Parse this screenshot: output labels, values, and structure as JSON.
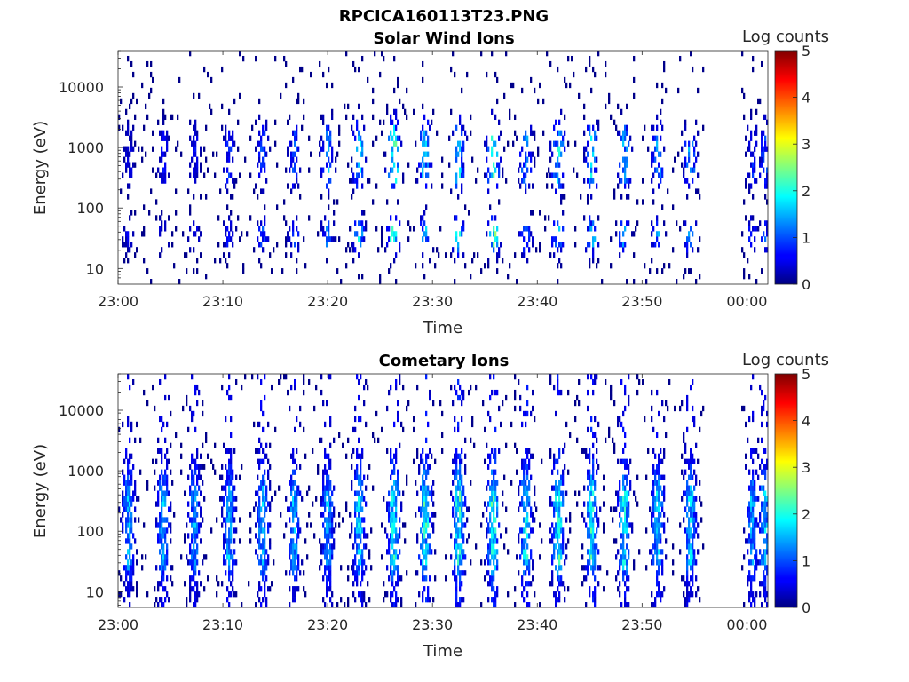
{
  "figure": {
    "title": "RPCICA160113T23.PNG"
  },
  "chart_data": [
    {
      "type": "heatmap",
      "title": "Solar Wind Ions",
      "xlabel": "Time",
      "ylabel": "Energy (eV)",
      "x_tick_labels": [
        "23:00",
        "23:10",
        "23:20",
        "23:30",
        "23:40",
        "23:50",
        "00:00"
      ],
      "x_range_minutes": [
        0,
        62
      ],
      "y_scale": "log",
      "y_range": [
        5.5,
        40000
      ],
      "y_tick_labels": [
        "10",
        "100",
        "1000",
        "10000"
      ],
      "colorbar": {
        "label": "Log counts",
        "range": [
          0,
          5
        ],
        "tick_labels": [
          "0",
          "1",
          "2",
          "3",
          "4",
          "5"
        ]
      },
      "data_gap_minutes": [
        56,
        59.5
      ],
      "sweep_centers_minutes": [
        1.0,
        4.3,
        7.3,
        10.6,
        13.8,
        16.8,
        20.0,
        23.0,
        26.3,
        29.3,
        32.5,
        35.8,
        38.9,
        42.0,
        45.2,
        48.3,
        51.5,
        54.6,
        60.5,
        61.7
      ],
      "sweep_levels_log_counts": [
        0.5,
        0.6,
        0.6,
        0.8,
        1.0,
        1.0,
        1.3,
        1.6,
        2.4,
        1.8,
        1.8,
        2.4,
        1.4,
        1.8,
        1.7,
        1.5,
        1.3,
        1.4,
        0.8,
        1.0
      ],
      "energy_band_centers_eV": [
        1000,
        400,
        35
      ],
      "style": "sparse"
    },
    {
      "type": "heatmap",
      "title": "Cometary Ions",
      "xlabel": "Time",
      "ylabel": "Energy (eV)",
      "x_tick_labels": [
        "23:00",
        "23:10",
        "23:20",
        "23:30",
        "23:40",
        "23:50",
        "00:00"
      ],
      "x_range_minutes": [
        0,
        62
      ],
      "y_scale": "log",
      "y_range": [
        5.5,
        40000
      ],
      "y_tick_labels": [
        "10",
        "100",
        "1000",
        "10000"
      ],
      "colorbar": {
        "label": "Log counts",
        "range": [
          0,
          5
        ],
        "tick_labels": [
          "0",
          "1",
          "2",
          "3",
          "4",
          "5"
        ]
      },
      "data_gap_minutes": [
        56,
        59.5
      ],
      "sweep_centers_minutes": [
        1.0,
        4.3,
        7.3,
        10.6,
        13.8,
        16.8,
        20.0,
        23.0,
        26.3,
        29.3,
        32.5,
        35.8,
        38.9,
        42.0,
        45.2,
        48.3,
        51.5,
        54.6,
        60.5,
        61.7
      ],
      "sweep_levels_log_counts": [
        1.6,
        1.6,
        1.5,
        1.6,
        1.7,
        1.6,
        1.5,
        1.8,
        2.0,
        2.2,
        2.2,
        2.2,
        2.0,
        2.1,
        2.1,
        2.0,
        1.8,
        1.8,
        1.5,
        1.7
      ],
      "energy_band_centers_eV": [
        300,
        120,
        40
      ],
      "style": "dense"
    }
  ]
}
